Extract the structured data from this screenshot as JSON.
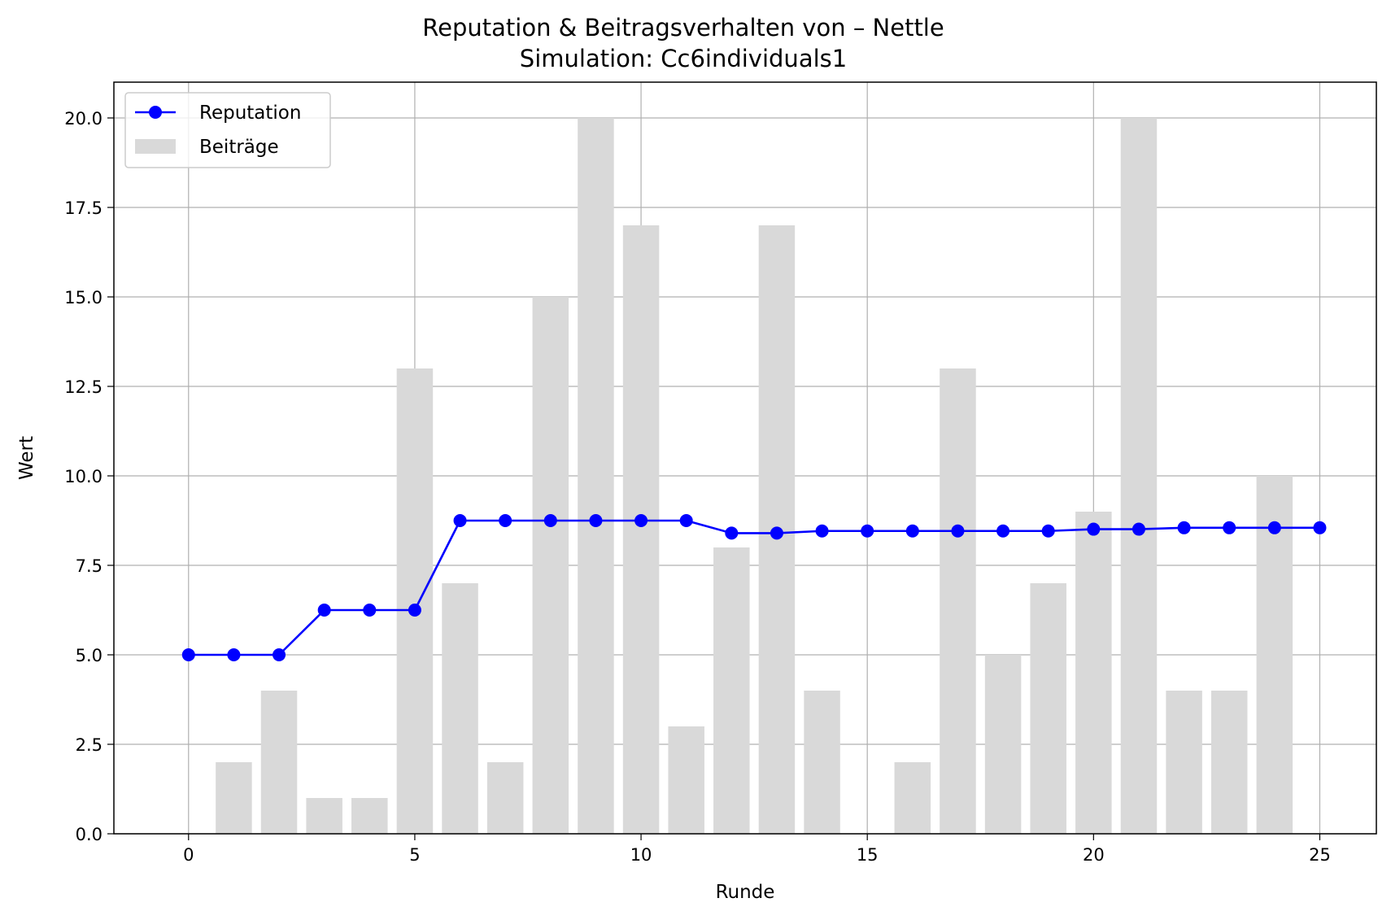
{
  "chart_data": {
    "type": "bar",
    "title": "Reputation & Beitragsverhalten von – Nettle",
    "subtitle": "Simulation: Cc6individuals1",
    "xlabel": "Runde",
    "ylabel": "Wert",
    "xlim": [
      -1.65,
      26.25
    ],
    "ylim": [
      0,
      21
    ],
    "xticks": [
      0,
      5,
      10,
      15,
      20,
      25
    ],
    "yticks": [
      0.0,
      2.5,
      5.0,
      7.5,
      10.0,
      12.5,
      15.0,
      17.5,
      20.0
    ],
    "xtick_labels": [
      "0",
      "5",
      "10",
      "15",
      "20",
      "25"
    ],
    "ytick_labels": [
      "0.0",
      "2.5",
      "5.0",
      "7.5",
      "10.0",
      "12.5",
      "15.0",
      "17.5",
      "20.0"
    ],
    "grid": true,
    "legend_position": "upper-left",
    "x": [
      0,
      1,
      2,
      3,
      4,
      5,
      6,
      7,
      8,
      9,
      10,
      11,
      12,
      13,
      14,
      15,
      16,
      17,
      18,
      19,
      20,
      21,
      22,
      23,
      24,
      25
    ],
    "series": [
      {
        "name": "Reputation",
        "kind": "line",
        "color": "#0000ff",
        "marker": "circle",
        "values": [
          5.0,
          5.0,
          5.0,
          6.25,
          6.25,
          6.25,
          8.75,
          8.75,
          8.75,
          8.75,
          8.75,
          8.75,
          8.4,
          8.4,
          8.46,
          8.46,
          8.46,
          8.46,
          8.46,
          8.46,
          8.51,
          8.51,
          8.55,
          8.55,
          8.55,
          8.55
        ]
      },
      {
        "name": "Beiträge",
        "kind": "bar",
        "color": "#d9d9d9",
        "values": [
          0,
          2,
          4,
          1,
          1,
          13,
          7,
          2,
          15,
          20,
          17,
          3,
          8,
          17,
          4,
          0,
          2,
          13,
          5,
          7,
          9,
          20,
          4,
          4,
          10,
          0
        ]
      }
    ]
  }
}
